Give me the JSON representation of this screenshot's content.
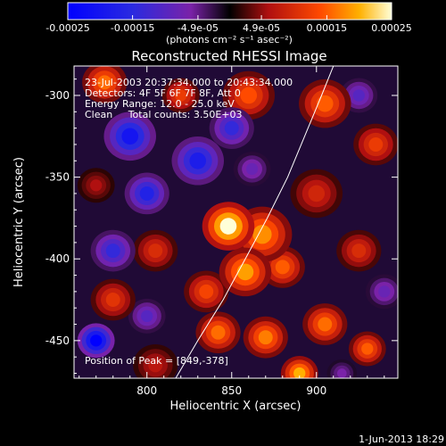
{
  "chart_data": {
    "type": "heatmap",
    "title": "Reconstructed RHESSI Image",
    "xlabel": "Heliocentric X (arcsec)",
    "ylabel": "Heliocentric Y (arcsec)",
    "xlim": [
      757,
      948
    ],
    "ylim": [
      -473,
      -282
    ],
    "x_ticks": [
      800,
      850,
      900
    ],
    "y_ticks": [
      -300,
      -350,
      -400,
      -450
    ],
    "colorbar": {
      "range": [
        -0.00025,
        0.00025
      ],
      "ticks": [
        {
          "value": -0.00025,
          "label": "-0.00025"
        },
        {
          "value": -0.00015,
          "label": "-0.00015"
        },
        {
          "value": -4.9e-05,
          "label": "-4.9e-05"
        },
        {
          "value": 4.9e-05,
          "label": "4.9e-05"
        },
        {
          "value": 0.00015,
          "label": "0.00015"
        },
        {
          "value": 0.00025,
          "label": "0.00025"
        }
      ],
      "unit_label": "(photons cm⁻² s⁻¹ asec⁻²)"
    },
    "annotations": [
      "23-Jul-2003 20:37:34.000 to 20:43:34.000",
      "Detectors: 4F 5F 6F 7F 8F, Att 0",
      "Energy Range: 12.0 - 25.0 keV",
      "Clean     Total counts: 3.50E+03"
    ],
    "peak_label": "Position of Peak = [849,-378]",
    "peak": [
      849,
      -378
    ],
    "limb_curve": [
      [
        817,
        -473
      ],
      [
        830,
        -450
      ],
      [
        845,
        -425
      ],
      [
        858,
        -400
      ],
      [
        871,
        -375
      ],
      [
        883,
        -350
      ],
      [
        893,
        -325
      ],
      [
        903,
        -300
      ],
      [
        910,
        -282
      ]
    ],
    "blobs": [
      {
        "x": 848,
        "y": -380,
        "r": 14,
        "v": 0.00025
      },
      {
        "x": 868,
        "y": -385,
        "r": 16,
        "v": 0.00018
      },
      {
        "x": 858,
        "y": -408,
        "r": 14,
        "v": 0.00019
      },
      {
        "x": 880,
        "y": -405,
        "r": 12,
        "v": 0.00015
      },
      {
        "x": 835,
        "y": -420,
        "r": 12,
        "v": 0.00013
      },
      {
        "x": 842,
        "y": -445,
        "r": 12,
        "v": 0.00016
      },
      {
        "x": 870,
        "y": -448,
        "r": 12,
        "v": 0.00017
      },
      {
        "x": 905,
        "y": -440,
        "r": 12,
        "v": 0.00016
      },
      {
        "x": 930,
        "y": -455,
        "r": 10,
        "v": 0.00015
      },
      {
        "x": 775,
        "y": -292,
        "r": 12,
        "v": 0.00016
      },
      {
        "x": 820,
        "y": -300,
        "r": 10,
        "v": 0.00012
      },
      {
        "x": 860,
        "y": -300,
        "r": 14,
        "v": 0.00014
      },
      {
        "x": 905,
        "y": -305,
        "r": 14,
        "v": 0.00015
      },
      {
        "x": 935,
        "y": -330,
        "r": 12,
        "v": 0.00012
      },
      {
        "x": 900,
        "y": -360,
        "r": 14,
        "v": 9e-05
      },
      {
        "x": 925,
        "y": -395,
        "r": 12,
        "v": 0.0001
      },
      {
        "x": 805,
        "y": -395,
        "r": 12,
        "v": 0.0001
      },
      {
        "x": 780,
        "y": -425,
        "r": 12,
        "v": 0.00011
      },
      {
        "x": 805,
        "y": -465,
        "r": 12,
        "v": 7e-05
      },
      {
        "x": 890,
        "y": -470,
        "r": 10,
        "v": 0.0002
      },
      {
        "x": 770,
        "y": -355,
        "r": 10,
        "v": 6e-05
      },
      {
        "x": 790,
        "y": -325,
        "r": 14,
        "v": -0.0002
      },
      {
        "x": 830,
        "y": -340,
        "r": 14,
        "v": -0.00018
      },
      {
        "x": 800,
        "y": -360,
        "r": 12,
        "v": -0.00017
      },
      {
        "x": 850,
        "y": -320,
        "r": 12,
        "v": -0.00014
      },
      {
        "x": 780,
        "y": -395,
        "r": 12,
        "v": -0.00014
      },
      {
        "x": 770,
        "y": -450,
        "r": 10,
        "v": -0.00025
      },
      {
        "x": 925,
        "y": -300,
        "r": 10,
        "v": -0.0001
      },
      {
        "x": 940,
        "y": -420,
        "r": 10,
        "v": -8e-05
      },
      {
        "x": 800,
        "y": -435,
        "r": 10,
        "v": -0.0001
      },
      {
        "x": 862,
        "y": -345,
        "r": 10,
        "v": -8e-05
      },
      {
        "x": 915,
        "y": -470,
        "r": 8,
        "v": -6e-05
      }
    ]
  },
  "footer": {
    "date": "1-Jun-2013 18:29"
  }
}
